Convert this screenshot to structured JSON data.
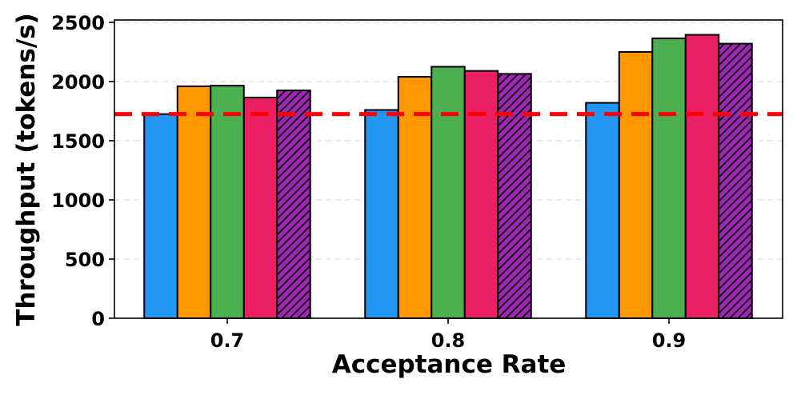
{
  "chart_data": {
    "type": "bar",
    "title": "",
    "xlabel": "Acceptance Rate",
    "ylabel": "Throughput (tokens/s)",
    "categories": [
      "0.7",
      "0.8",
      "0.9"
    ],
    "ylim": [
      0,
      2520
    ],
    "yticks": [
      0,
      500,
      1000,
      1500,
      2000,
      2500
    ],
    "grid": "horizontal-dashed",
    "legend": "none",
    "series": [
      {
        "name": "series-1",
        "color": "#2196F3",
        "hatch": false,
        "values": [
          1725,
          1760,
          1820
        ]
      },
      {
        "name": "series-2",
        "color": "#FF9800",
        "hatch": false,
        "values": [
          1960,
          2040,
          2250
        ]
      },
      {
        "name": "series-3",
        "color": "#4CAF50",
        "hatch": false,
        "values": [
          1965,
          2125,
          2365
        ]
      },
      {
        "name": "series-4",
        "color": "#E91E63",
        "hatch": false,
        "values": [
          1865,
          2090,
          2395
        ]
      },
      {
        "name": "series-5",
        "color": "#9C27B0",
        "hatch": true,
        "values": [
          1925,
          2065,
          2320
        ]
      }
    ],
    "reference_line": {
      "value": 1725,
      "color": "#FF0000",
      "style": "dashed"
    }
  }
}
